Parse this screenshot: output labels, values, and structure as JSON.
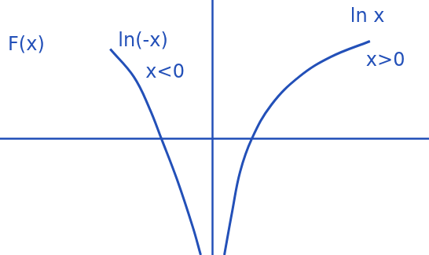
{
  "chart_data": {
    "type": "line",
    "color": "#2350b8",
    "xlim": [
      -5.4,
      5.5
    ],
    "ylim": [
      -2.94,
      3.5
    ],
    "tick_labels": false,
    "series": [
      {
        "color": "#2350b8",
        "x": [
          -2.6,
          -2.0,
          -1.6,
          -1.3,
          -0.9,
          -0.5,
          -0.3
        ],
        "values": [
          2.26,
          1.56,
          0.76,
          0.0,
          -1.04,
          -2.24,
          -2.94
        ]
      },
      {
        "color": "#2350b8",
        "x": [
          0.3,
          0.5,
          0.7,
          1.0,
          1.5,
          2.2,
          3.0,
          4.0
        ],
        "values": [
          -2.94,
          -1.84,
          -0.84,
          0.0,
          0.86,
          1.56,
          2.06,
          2.46
        ]
      }
    ],
    "annotations": [
      {
        "text": "F(x)",
        "x": -5.2,
        "y": 2.36
      },
      {
        "text": "ln(-x)",
        "x": -2.4,
        "y": 2.46
      },
      {
        "text": "x<0",
        "x": -1.7,
        "y": 1.66
      },
      {
        "text": "ln x",
        "x": 3.5,
        "y": 3.06
      },
      {
        "text": "x>0",
        "x": 3.9,
        "y": 1.96
      }
    ]
  }
}
